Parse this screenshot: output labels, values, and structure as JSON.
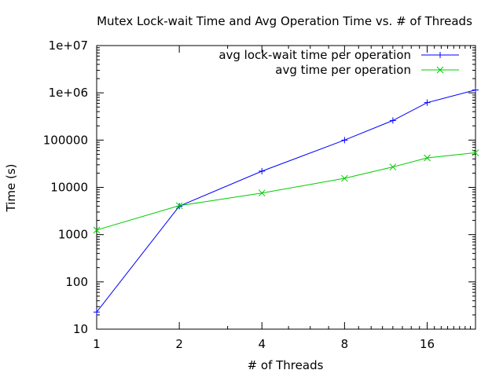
{
  "chart_data": {
    "type": "line",
    "title": "Mutex Lock-wait Time and Avg Operation Time vs. # of Threads",
    "xlabel": "# of Threads",
    "ylabel": "Time (s)",
    "x_scale": "log2",
    "y_scale": "log10",
    "xlim": [
      1,
      24
    ],
    "ylim": [
      10,
      10000000
    ],
    "x_ticks": [
      {
        "value": 1,
        "label": "1"
      },
      {
        "value": 2,
        "label": "2"
      },
      {
        "value": 4,
        "label": "4"
      },
      {
        "value": 8,
        "label": "8"
      },
      {
        "value": 16,
        "label": "16"
      }
    ],
    "y_ticks": [
      {
        "value": 10,
        "label": "10"
      },
      {
        "value": 100,
        "label": "100"
      },
      {
        "value": 1000,
        "label": "1000"
      },
      {
        "value": 10000,
        "label": "10000"
      },
      {
        "value": 100000,
        "label": "100000"
      },
      {
        "value": 1000000,
        "label": "1e+06"
      },
      {
        "value": 10000000,
        "label": "1e+07"
      }
    ],
    "grid": false,
    "legend_position": "top-right",
    "series": [
      {
        "name": "avg lock-wait time per operation",
        "color": "#0000ff",
        "marker": "plus",
        "x": [
          1,
          2,
          4,
          8,
          12,
          16,
          24
        ],
        "y": [
          23,
          4000,
          22000,
          100000,
          260000,
          620000,
          1150000
        ]
      },
      {
        "name": "avg time per operation",
        "color": "#00cc00",
        "marker": "cross",
        "x": [
          1,
          2,
          4,
          8,
          12,
          16,
          24
        ],
        "y": [
          1250,
          4100,
          7600,
          15500,
          27000,
          42000,
          54000
        ]
      }
    ]
  }
}
